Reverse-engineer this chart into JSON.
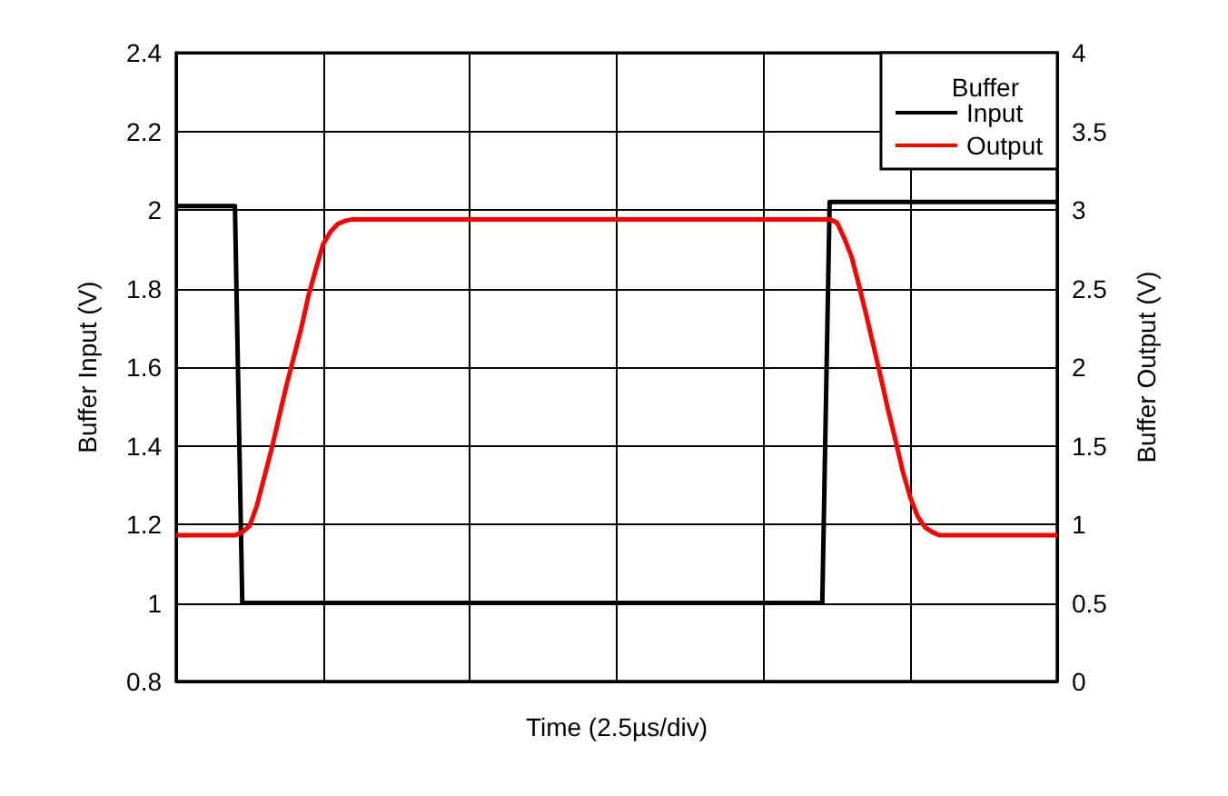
{
  "chart_data": {
    "type": "line",
    "xlabel": "Time (2.5µs/div)",
    "ylabel": "Buffer Input (V)",
    "y2label": "Buffer Output (V)",
    "legend_title": "Buffer",
    "categories": [
      null,
      null,
      null,
      null,
      null,
      null,
      null,
      null,
      null,
      null,
      null,
      null,
      null,
      null,
      null,
      null,
      null,
      null,
      null,
      null,
      null,
      null,
      null,
      null,
      null,
      null,
      null,
      null,
      null,
      null,
      null,
      null,
      null,
      null,
      null,
      null,
      null,
      null,
      null,
      null,
      null,
      null,
      null,
      null,
      null,
      null,
      null,
      null,
      null,
      null,
      null,
      null,
      null,
      null,
      null,
      null,
      null,
      null,
      null,
      null,
      null,
      null,
      null,
      null,
      null,
      null,
      null,
      null,
      null,
      null,
      null,
      null,
      null,
      null,
      null,
      null,
      null,
      null,
      null,
      null,
      null,
      null,
      null,
      null,
      null,
      null,
      null,
      null,
      null,
      null,
      null,
      null,
      null,
      null,
      null,
      null,
      null,
      null,
      null,
      null,
      null,
      null,
      null,
      null,
      null,
      null,
      null,
      null,
      null,
      null,
      null,
      null,
      null,
      null,
      null,
      null,
      null,
      null,
      null,
      null,
      null
    ],
    "series": [
      {
        "name": "Input",
        "color": "#000000",
        "values": [
          2.01,
          2.01,
          2.01,
          2.01,
          2.01,
          2.01,
          2.01,
          2.01,
          2.01,
          1.0,
          1.0,
          1.0,
          1.0,
          1.0,
          1.0,
          1.0,
          1.0,
          1.0,
          1.0,
          1.0,
          1.0,
          1.0,
          1.0,
          1.0,
          1.0,
          1.0,
          1.0,
          1.0,
          1.0,
          1.0,
          1.0,
          1.0,
          1.0,
          1.0,
          1.0,
          1.0,
          1.0,
          1.0,
          1.0,
          1.0,
          1.0,
          1.0,
          1.0,
          1.0,
          1.0,
          1.0,
          1.0,
          1.0,
          1.0,
          1.0,
          1.0,
          1.0,
          1.0,
          1.0,
          1.0,
          1.0,
          1.0,
          1.0,
          1.0,
          1.0,
          1.0,
          1.0,
          1.0,
          1.0,
          1.0,
          1.0,
          1.0,
          1.0,
          1.0,
          1.0,
          1.0,
          1.0,
          1.0,
          1.0,
          1.0,
          1.0,
          1.0,
          1.0,
          1.0,
          1.0,
          1.0,
          1.0,
          1.0,
          1.0,
          1.0,
          1.0,
          1.0,
          1.0,
          1.0,
          2.02,
          2.02,
          2.02,
          2.02,
          2.02,
          2.02,
          2.02,
          2.02,
          2.02,
          2.02,
          2.02,
          2.02,
          2.02,
          2.02,
          2.02,
          2.02,
          2.02,
          2.02,
          2.02,
          2.02,
          2.02,
          2.02,
          2.02,
          2.02,
          2.02,
          2.02,
          2.02,
          2.02,
          2.02,
          2.02,
          2.02,
          2.02
        ]
      },
      {
        "name": "Output",
        "color": "#ff0000",
        "axis": "y2",
        "values": [
          0.93,
          0.93,
          0.93,
          0.93,
          0.93,
          0.93,
          0.93,
          0.93,
          0.93,
          0.95,
          0.99,
          1.12,
          1.3,
          1.48,
          1.68,
          1.88,
          2.06,
          2.24,
          2.45,
          2.62,
          2.78,
          2.86,
          2.91,
          2.93,
          2.94,
          2.94,
          2.94,
          2.94,
          2.94,
          2.94,
          2.94,
          2.94,
          2.94,
          2.94,
          2.94,
          2.94,
          2.94,
          2.94,
          2.94,
          2.94,
          2.94,
          2.94,
          2.94,
          2.94,
          2.94,
          2.94,
          2.94,
          2.94,
          2.94,
          2.94,
          2.94,
          2.94,
          2.94,
          2.94,
          2.94,
          2.94,
          2.94,
          2.94,
          2.94,
          2.94,
          2.94,
          2.94,
          2.94,
          2.94,
          2.94,
          2.94,
          2.94,
          2.94,
          2.94,
          2.94,
          2.94,
          2.94,
          2.94,
          2.94,
          2.94,
          2.94,
          2.94,
          2.94,
          2.94,
          2.94,
          2.94,
          2.94,
          2.94,
          2.94,
          2.94,
          2.94,
          2.94,
          2.94,
          2.94,
          2.94,
          2.92,
          2.82,
          2.7,
          2.52,
          2.33,
          2.13,
          1.93,
          1.72,
          1.53,
          1.33,
          1.17,
          1.05,
          0.98,
          0.95,
          0.93,
          0.93,
          0.93,
          0.93,
          0.93,
          0.93,
          0.93,
          0.93,
          0.93,
          0.93,
          0.93,
          0.93,
          0.93,
          0.93,
          0.93,
          0.93,
          0.93
        ]
      }
    ],
    "ylim": [
      0.8,
      2.4
    ],
    "yticks": [
      0.8,
      1,
      1.2,
      1.4,
      1.6,
      1.8,
      2,
      2.2,
      2.4
    ],
    "y2lim": [
      0,
      4
    ],
    "y2ticks": [
      0,
      0.5,
      1,
      1.5,
      2,
      2.5,
      3,
      3.5,
      4
    ],
    "grid": true,
    "legend": "top right",
    "tick_labels": "y",
    "line_style": "solid"
  }
}
